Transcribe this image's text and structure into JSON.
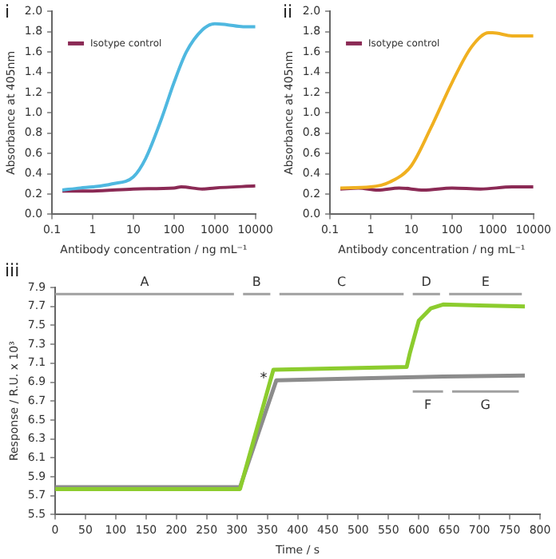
{
  "chart_data": [
    {
      "type": "line",
      "annotations": [
        "i"
      ],
      "xlabel": "Antibody concentration / ng mL⁻¹",
      "ylabel": "Absorbance at 405nm",
      "log": "x",
      "xlim": [
        0.1,
        10000
      ],
      "xticks": [
        0.1,
        1,
        10,
        100,
        1000,
        10000
      ],
      "ylim": [
        0,
        2
      ],
      "yticks": [
        {
          "value": 0,
          "label": "0.0"
        },
        0.2,
        0.4,
        0.6,
        0.8,
        {
          "value": 1,
          "label": "1.0"
        },
        1.2,
        1.4,
        1.6,
        1.8,
        {
          "value": 2,
          "label": "2.0"
        }
      ],
      "legend": "top left",
      "marker": "none",
      "grid": false,
      "series": [
        {
          "color": "#4fb8e0",
          "x": [
            0.18,
            0.5,
            1,
            3,
            10,
            20,
            50,
            100,
            200,
            500,
            1000,
            2000,
            5000,
            10000
          ],
          "values": [
            0.24,
            0.26,
            0.27,
            0.3,
            0.37,
            0.55,
            0.95,
            1.3,
            1.6,
            1.82,
            1.88,
            1.87,
            1.85,
            1.85
          ]
        },
        {
          "name": "Isotype control",
          "color": "#8b2a55",
          "x": [
            0.18,
            1,
            10,
            100,
            150,
            500,
            1000,
            10000
          ],
          "values": [
            0.23,
            0.23,
            0.25,
            0.26,
            0.27,
            0.25,
            0.26,
            0.28
          ]
        }
      ]
    },
    {
      "type": "line",
      "annotations": [
        "ii"
      ],
      "xlabel": "Antibody concentration / ng mL⁻¹",
      "ylabel": "Absorbance at 405nm",
      "log": "x",
      "xlim": [
        0.1,
        10000
      ],
      "xticks": [
        0.1,
        1,
        10,
        100,
        1000,
        10000
      ],
      "ylim": [
        0,
        2
      ],
      "yticks": [
        {
          "value": 0,
          "label": "0.0"
        },
        0.2,
        0.4,
        0.6,
        0.8,
        {
          "value": 1,
          "label": "1.0"
        },
        1.2,
        1.4,
        1.6,
        1.8,
        {
          "value": 2,
          "label": "2.0"
        }
      ],
      "legend": "top left",
      "marker": "none",
      "grid": false,
      "series": [
        {
          "color": "#f0b020",
          "x": [
            0.18,
            1,
            3,
            10,
            30,
            100,
            300,
            800,
            1000,
            3000,
            10000
          ],
          "values": [
            0.26,
            0.27,
            0.32,
            0.48,
            0.85,
            1.3,
            1.65,
            1.79,
            1.79,
            1.76,
            1.76
          ]
        },
        {
          "name": "Isotype control",
          "color": "#8b2a55",
          "x": [
            0.18,
            0.5,
            1.5,
            5,
            20,
            100,
            500,
            3000,
            10000
          ],
          "values": [
            0.25,
            0.26,
            0.24,
            0.26,
            0.24,
            0.26,
            0.25,
            0.27,
            0.27
          ]
        }
      ]
    },
    {
      "type": "line",
      "annotations": [
        "iii",
        "*"
      ],
      "xlabel": "Time / s",
      "ylabel": "Response / R.U. x 10³",
      "xlim": [
        0,
        800
      ],
      "xticks": [
        0,
        50,
        100,
        150,
        200,
        250,
        300,
        350,
        400,
        450,
        500,
        550,
        600,
        650,
        700,
        750,
        800
      ],
      "ylim": [
        5.5,
        7.9
      ],
      "yticks": [
        5.5,
        5.7,
        5.9,
        6.1,
        6.3,
        6.5,
        6.7,
        6.9,
        7.1,
        7.3,
        7.5,
        7.7,
        7.9
      ],
      "legend": false,
      "marker": "none",
      "grid": false,
      "series": [
        {
          "name": "A",
          "color": "#a0a0a0",
          "x": [
            0,
            295
          ],
          "values": [
            7.83,
            7.83
          ]
        },
        {
          "name": "B",
          "color": "#a0a0a0",
          "x": [
            310,
            355
          ],
          "values": [
            7.83,
            7.83
          ]
        },
        {
          "name": "C",
          "color": "#a0a0a0",
          "x": [
            370,
            575
          ],
          "values": [
            7.83,
            7.83
          ]
        },
        {
          "name": "D",
          "color": "#a0a0a0",
          "x": [
            590,
            635
          ],
          "values": [
            7.83,
            7.83
          ]
        },
        {
          "name": "E",
          "color": "#a0a0a0",
          "x": [
            650,
            770
          ],
          "values": [
            7.83,
            7.83
          ]
        },
        {
          "name": "F",
          "color": "#a0a0a0",
          "x": [
            590,
            640
          ],
          "values": [
            6.8,
            6.8
          ]
        },
        {
          "name": "G",
          "color": "#a0a0a0",
          "x": [
            655,
            765
          ],
          "values": [
            6.8,
            6.8
          ]
        },
        {
          "color": "#8ccc2e",
          "x": [
            0,
            305,
            360,
            580,
            585,
            600,
            620,
            640,
            700,
            775
          ],
          "values": [
            5.77,
            5.77,
            7.03,
            7.06,
            7.2,
            7.55,
            7.68,
            7.72,
            7.71,
            7.7
          ]
        },
        {
          "color": "#8c8c8c",
          "x": [
            0,
            305,
            365,
            580,
            640,
            775
          ],
          "values": [
            5.79,
            5.79,
            6.92,
            6.95,
            6.96,
            6.97
          ]
        }
      ]
    }
  ]
}
